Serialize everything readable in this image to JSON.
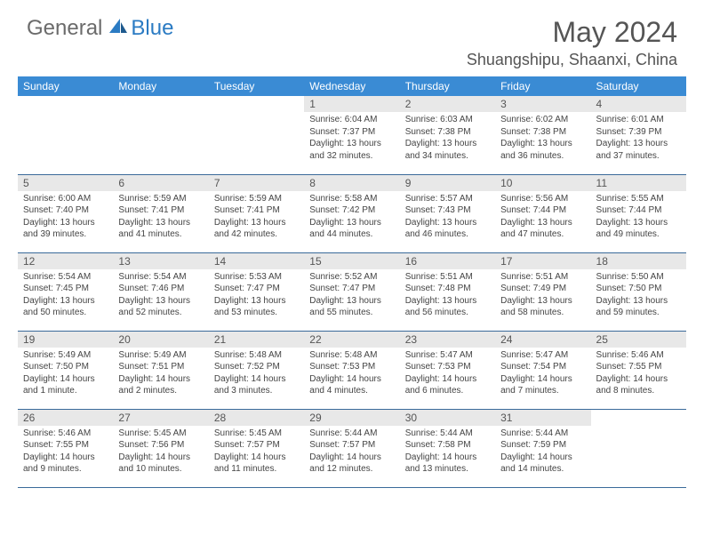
{
  "brand": {
    "part1": "General",
    "part2": "Blue"
  },
  "title": "May 2024",
  "location": "Shuangshipu, Shaanxi, China",
  "colors": {
    "header_bg": "#3a8bd4",
    "header_text": "#ffffff",
    "daynum_bg": "#e8e8e8",
    "text": "#444444",
    "border": "#3a6a9a",
    "logo_gray": "#6b6b6b",
    "logo_blue": "#2b7bc3"
  },
  "weekdays": [
    "Sunday",
    "Monday",
    "Tuesday",
    "Wednesday",
    "Thursday",
    "Friday",
    "Saturday"
  ],
  "weeks": [
    [
      null,
      null,
      null,
      {
        "n": "1",
        "sr": "6:04 AM",
        "ss": "7:37 PM",
        "dl": "13 hours and 32 minutes."
      },
      {
        "n": "2",
        "sr": "6:03 AM",
        "ss": "7:38 PM",
        "dl": "13 hours and 34 minutes."
      },
      {
        "n": "3",
        "sr": "6:02 AM",
        "ss": "7:38 PM",
        "dl": "13 hours and 36 minutes."
      },
      {
        "n": "4",
        "sr": "6:01 AM",
        "ss": "7:39 PM",
        "dl": "13 hours and 37 minutes."
      }
    ],
    [
      {
        "n": "5",
        "sr": "6:00 AM",
        "ss": "7:40 PM",
        "dl": "13 hours and 39 minutes."
      },
      {
        "n": "6",
        "sr": "5:59 AM",
        "ss": "7:41 PM",
        "dl": "13 hours and 41 minutes."
      },
      {
        "n": "7",
        "sr": "5:59 AM",
        "ss": "7:41 PM",
        "dl": "13 hours and 42 minutes."
      },
      {
        "n": "8",
        "sr": "5:58 AM",
        "ss": "7:42 PM",
        "dl": "13 hours and 44 minutes."
      },
      {
        "n": "9",
        "sr": "5:57 AM",
        "ss": "7:43 PM",
        "dl": "13 hours and 46 minutes."
      },
      {
        "n": "10",
        "sr": "5:56 AM",
        "ss": "7:44 PM",
        "dl": "13 hours and 47 minutes."
      },
      {
        "n": "11",
        "sr": "5:55 AM",
        "ss": "7:44 PM",
        "dl": "13 hours and 49 minutes."
      }
    ],
    [
      {
        "n": "12",
        "sr": "5:54 AM",
        "ss": "7:45 PM",
        "dl": "13 hours and 50 minutes."
      },
      {
        "n": "13",
        "sr": "5:54 AM",
        "ss": "7:46 PM",
        "dl": "13 hours and 52 minutes."
      },
      {
        "n": "14",
        "sr": "5:53 AM",
        "ss": "7:47 PM",
        "dl": "13 hours and 53 minutes."
      },
      {
        "n": "15",
        "sr": "5:52 AM",
        "ss": "7:47 PM",
        "dl": "13 hours and 55 minutes."
      },
      {
        "n": "16",
        "sr": "5:51 AM",
        "ss": "7:48 PM",
        "dl": "13 hours and 56 minutes."
      },
      {
        "n": "17",
        "sr": "5:51 AM",
        "ss": "7:49 PM",
        "dl": "13 hours and 58 minutes."
      },
      {
        "n": "18",
        "sr": "5:50 AM",
        "ss": "7:50 PM",
        "dl": "13 hours and 59 minutes."
      }
    ],
    [
      {
        "n": "19",
        "sr": "5:49 AM",
        "ss": "7:50 PM",
        "dl": "14 hours and 1 minute."
      },
      {
        "n": "20",
        "sr": "5:49 AM",
        "ss": "7:51 PM",
        "dl": "14 hours and 2 minutes."
      },
      {
        "n": "21",
        "sr": "5:48 AM",
        "ss": "7:52 PM",
        "dl": "14 hours and 3 minutes."
      },
      {
        "n": "22",
        "sr": "5:48 AM",
        "ss": "7:53 PM",
        "dl": "14 hours and 4 minutes."
      },
      {
        "n": "23",
        "sr": "5:47 AM",
        "ss": "7:53 PM",
        "dl": "14 hours and 6 minutes."
      },
      {
        "n": "24",
        "sr": "5:47 AM",
        "ss": "7:54 PM",
        "dl": "14 hours and 7 minutes."
      },
      {
        "n": "25",
        "sr": "5:46 AM",
        "ss": "7:55 PM",
        "dl": "14 hours and 8 minutes."
      }
    ],
    [
      {
        "n": "26",
        "sr": "5:46 AM",
        "ss": "7:55 PM",
        "dl": "14 hours and 9 minutes."
      },
      {
        "n": "27",
        "sr": "5:45 AM",
        "ss": "7:56 PM",
        "dl": "14 hours and 10 minutes."
      },
      {
        "n": "28",
        "sr": "5:45 AM",
        "ss": "7:57 PM",
        "dl": "14 hours and 11 minutes."
      },
      {
        "n": "29",
        "sr": "5:44 AM",
        "ss": "7:57 PM",
        "dl": "14 hours and 12 minutes."
      },
      {
        "n": "30",
        "sr": "5:44 AM",
        "ss": "7:58 PM",
        "dl": "14 hours and 13 minutes."
      },
      {
        "n": "31",
        "sr": "5:44 AM",
        "ss": "7:59 PM",
        "dl": "14 hours and 14 minutes."
      },
      null
    ]
  ],
  "labels": {
    "sunrise": "Sunrise:",
    "sunset": "Sunset:",
    "daylight": "Daylight:"
  }
}
